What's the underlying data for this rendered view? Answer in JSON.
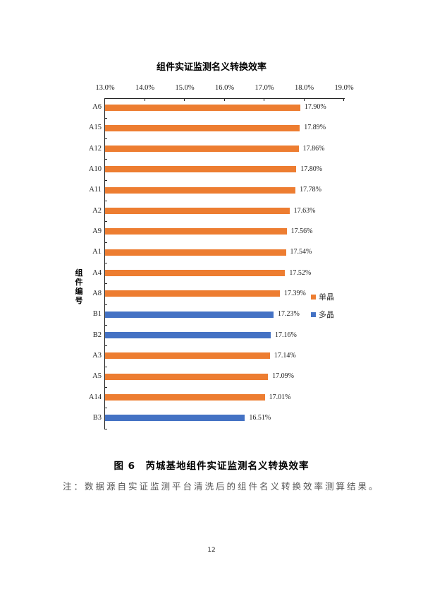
{
  "chart_data": {
    "type": "bar",
    "orientation": "horizontal",
    "title": "组件实证监测名义转换效率",
    "xlabel": "",
    "ylabel": "组件编号",
    "xlim": [
      13.0,
      19.0
    ],
    "x_ticks": [
      "13.0%",
      "14.0%",
      "15.0%",
      "16.0%",
      "17.0%",
      "18.0%",
      "19.0%"
    ],
    "x_axis_position": "top",
    "grid": false,
    "legend_position": "right",
    "legend": [
      {
        "name": "单晶",
        "color": "#ED7D31"
      },
      {
        "name": "多晶",
        "color": "#4472C4"
      }
    ],
    "categories": [
      "A6",
      "A15",
      "A12",
      "A10",
      "A11",
      "A2",
      "A9",
      "A1",
      "A4",
      "A8",
      "B1",
      "B2",
      "A3",
      "A5",
      "A14",
      "B3"
    ],
    "values": [
      17.9,
      17.89,
      17.86,
      17.8,
      17.78,
      17.63,
      17.56,
      17.54,
      17.52,
      17.39,
      17.23,
      17.16,
      17.14,
      17.09,
      17.01,
      16.51
    ],
    "value_labels": [
      "17.90%",
      "17.89%",
      "17.86%",
      "17.80%",
      "17.78%",
      "17.63%",
      "17.56%",
      "17.54%",
      "17.52%",
      "17.39%",
      "17.23%",
      "17.16%",
      "17.14%",
      "17.09%",
      "17.01%",
      "16.51%"
    ],
    "series_type": [
      "单晶",
      "单晶",
      "单晶",
      "单晶",
      "单晶",
      "单晶",
      "单晶",
      "单晶",
      "单晶",
      "单晶",
      "多晶",
      "多晶",
      "单晶",
      "单晶",
      "单晶",
      "多晶"
    ]
  },
  "colors": {
    "mono": "#ED7D31",
    "poly": "#4472C4"
  },
  "caption": "图 6　芮城基地组件实证监测名义转换效率",
  "note": "注：数据源自实证监测平台清洗后的组件名义转换效率测算结果。",
  "page_number": "12"
}
